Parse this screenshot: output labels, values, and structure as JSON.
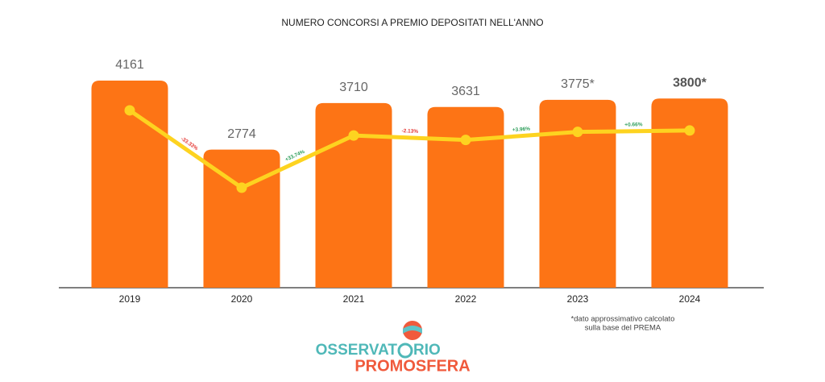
{
  "chart_data": {
    "type": "bar",
    "title": "NUMERO CONCORSI A PREMIO DEPOSITATI NELL'ANNO",
    "categories": [
      "2019",
      "2020",
      "2021",
      "2022",
      "2023",
      "2024"
    ],
    "series": [
      {
        "type": "bar",
        "color": "#fd7415",
        "values": [
          4161,
          2774,
          3710,
          3631,
          3775,
          3800
        ],
        "value_labels": [
          "4161",
          "2774",
          "3710",
          "3631",
          "3775*",
          "3800*"
        ]
      },
      {
        "type": "line",
        "axis": "y2",
        "color": "#fdd320",
        "values": [
          4161,
          2774,
          3710,
          3631,
          3775,
          3800
        ]
      }
    ],
    "ylim": [
      0,
      4200
    ],
    "y2lim": [
      980,
      4730
    ],
    "annotations": [
      {
        "text": "-33.33%",
        "color": "#e53935"
      },
      {
        "text": "+33.74%",
        "color": "#2e9e5b"
      },
      {
        "text": "-2.13%",
        "color": "#e53935"
      },
      {
        "text": "+3.96%",
        "color": "#2e9e5b"
      },
      {
        "text": "+0.66%",
        "color": "#2e9e5b"
      }
    ],
    "footnote": [
      "*dato approssimativo calcolato",
      "sulla base del PREMA"
    ],
    "logo": {
      "top": [
        "OSSERVAT",
        "RIO"
      ],
      "bottom": "PROMOSFERA"
    }
  }
}
